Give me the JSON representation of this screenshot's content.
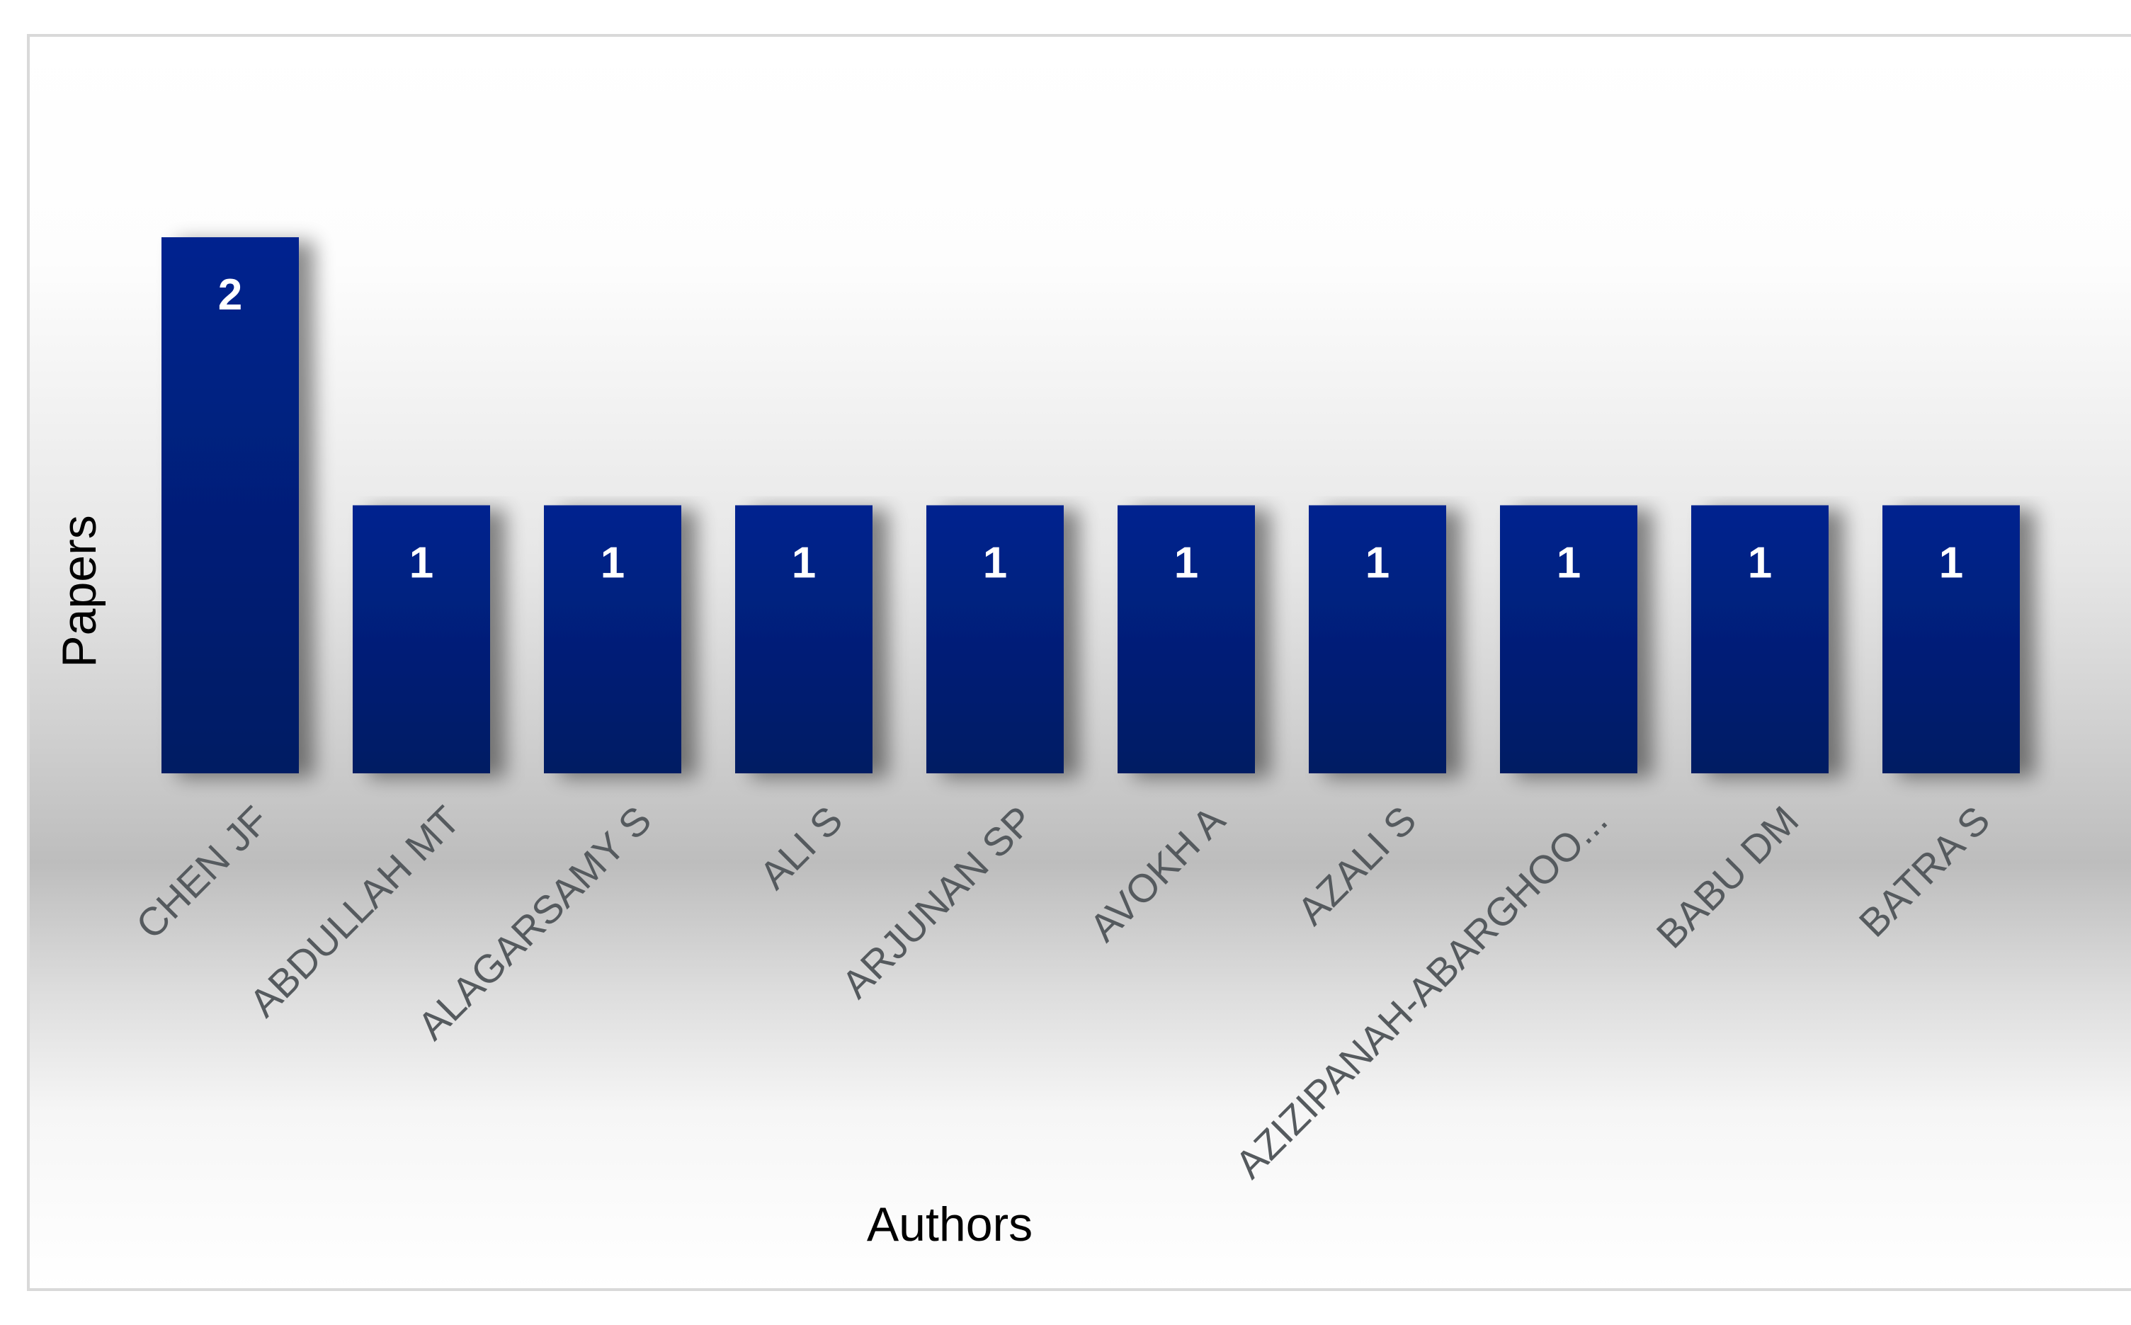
{
  "chart_data": {
    "type": "bar",
    "title": "",
    "xlabel": "Authors",
    "ylabel": "Papers",
    "categories": [
      "CHEN JF",
      "ABDULLAH MT",
      "ALAGARSAMY S",
      "ALI S",
      "ARJUNAN SP",
      "AVOKH A",
      "AZALI S",
      "AZIZIPANAH-ABARGHOO...",
      "BABU DM",
      "BATRA S"
    ],
    "values": [
      2,
      1,
      1,
      1,
      1,
      1,
      1,
      1,
      1,
      1
    ],
    "ylim": [
      0,
      2
    ],
    "grid": false,
    "legend": "none",
    "bar_color": "#0d2a8a",
    "bar_color_top": "#00238f",
    "bar_color_bottom": "#071a5e"
  }
}
